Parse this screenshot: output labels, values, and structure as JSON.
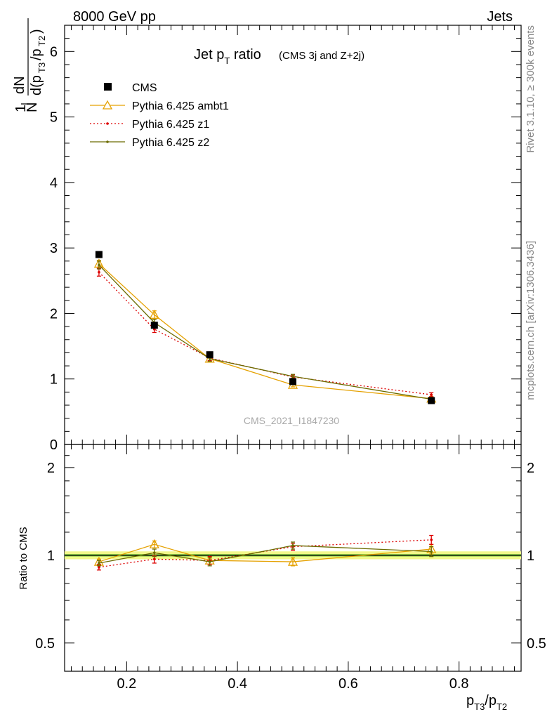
{
  "header": {
    "left": "8000 GeV pp",
    "right": "Jets",
    "side_right_top": "Rivet 3.1.10, ≥ 300k events",
    "side_right_bottom": "mcplots.cern.ch [arXiv:1306.3436]",
    "watermark": "CMS_2021_I1847230"
  },
  "chart_data": [
    {
      "type": "line",
      "panel": "main",
      "title": "Jet pT ratio",
      "title_main": "Jet p",
      "title_sub": "T",
      "title_after": " ratio",
      "title_small": "(CMS 3j and Z+2j)",
      "ylabel": "1/N dN/d(pT3/pT2)",
      "ylim": [
        0,
        6.4
      ],
      "y_ticks": [
        0,
        1,
        2,
        3,
        4,
        5,
        6
      ],
      "x": [
        0.15,
        0.25,
        0.35,
        0.5,
        0.75
      ],
      "xlim": [
        0.088,
        0.912
      ],
      "legend_position": "top-left",
      "series": [
        {
          "name": "CMS",
          "values": [
            2.9,
            1.82,
            1.37,
            0.96,
            0.67
          ],
          "errors": [
            0.03,
            0.03,
            0.02,
            0.02,
            0.02
          ],
          "color": "#000000",
          "style": "square-marker"
        },
        {
          "name": "Pythia 6.425 ambt1",
          "values": [
            2.76,
            1.98,
            1.31,
            0.91,
            0.7
          ],
          "errors": [
            0.05,
            0.06,
            0.04,
            0.03,
            0.03
          ],
          "color": "#e5a100",
          "style": "solid-triangle"
        },
        {
          "name": "Pythia 6.425 z1",
          "values": [
            2.63,
            1.76,
            1.32,
            1.03,
            0.76
          ],
          "errors": [
            0.06,
            0.05,
            0.04,
            0.03,
            0.03
          ],
          "color": "#dd0000",
          "style": "dotted-dot"
        },
        {
          "name": "Pythia 6.425 z2",
          "values": [
            2.74,
            1.86,
            1.31,
            1.04,
            0.69
          ],
          "errors": [
            0.06,
            0.05,
            0.04,
            0.03,
            0.03
          ],
          "color": "#6b6b00",
          "style": "solid-dot"
        }
      ]
    },
    {
      "type": "line",
      "panel": "ratio",
      "ylabel": "Ratio to CMS",
      "xlabel": "pT3/pT2",
      "xlabel_p1": "p",
      "xlabel_s1": "T3",
      "xlabel_p2": "/p",
      "xlabel_s2": "T2",
      "ylim": [
        0.4,
        2.4
      ],
      "log_scale_y": true,
      "y_tick_labels": [
        "0.5",
        "1",
        "2"
      ],
      "y_ticks": [
        0.5,
        1,
        2
      ],
      "x_tick_labels": [
        "0.2",
        "0.4",
        "0.6",
        "0.8"
      ],
      "x_ticks": [
        0.2,
        0.4,
        0.6,
        0.8
      ],
      "x": [
        0.15,
        0.25,
        0.35,
        0.5,
        0.75
      ],
      "reference_band": {
        "lower": [
          0.98,
          0.98,
          0.98,
          0.97,
          0.97
        ],
        "upper": [
          1.02,
          1.02,
          1.02,
          1.03,
          1.03
        ]
      },
      "series": [
        {
          "name": "Pythia 6.425 ambt1",
          "values": [
            0.95,
            1.09,
            0.96,
            0.95,
            1.05
          ],
          "errors": [
            0.02,
            0.03,
            0.03,
            0.03,
            0.04
          ],
          "color": "#e5a100"
        },
        {
          "name": "Pythia 6.425 z1",
          "values": [
            0.91,
            0.97,
            0.96,
            1.07,
            1.13
          ],
          "errors": [
            0.02,
            0.03,
            0.03,
            0.03,
            0.04
          ],
          "color": "#dd0000"
        },
        {
          "name": "Pythia 6.425 z2",
          "values": [
            0.94,
            1.02,
            0.95,
            1.08,
            1.03
          ],
          "errors": [
            0.02,
            0.03,
            0.03,
            0.03,
            0.04
          ],
          "color": "#6b6b00"
        }
      ]
    }
  ]
}
